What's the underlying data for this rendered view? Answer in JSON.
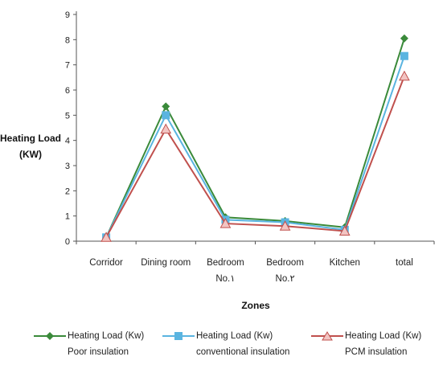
{
  "chart_data": {
    "type": "line",
    "title": "",
    "xlabel": "Zones",
    "ylabel": "Heating Load (KW)",
    "ylabel_lines": [
      "Heating Load",
      "(KW)"
    ],
    "categories": [
      "Corridor",
      "Dining room",
      "Bedroom No.١",
      "Bedroom No.٢",
      "Kitchen",
      "total"
    ],
    "category_lines": [
      [
        "Corridor"
      ],
      [
        "Dining room"
      ],
      [
        "Bedroom",
        "No.١"
      ],
      [
        "Bedroom",
        "No.٢"
      ],
      [
        "Kitchen"
      ],
      [
        "total"
      ]
    ],
    "ylim": [
      0,
      9
    ],
    "yticks": [
      0,
      1,
      2,
      3,
      4,
      5,
      6,
      7,
      8,
      9
    ],
    "grid": false,
    "legend_position": "bottom",
    "series": [
      {
        "name": "Heating Load (Kw) Poor insulation",
        "name_lines": [
          "Heating Load (Kw)",
          "Poor insulation"
        ],
        "color": "#3a8a3a",
        "marker": "diamond",
        "values": [
          0.15,
          5.35,
          0.95,
          0.8,
          0.55,
          8.05
        ]
      },
      {
        "name": "Heating Load (Kw) conventional insulation",
        "name_lines": [
          "Heating Load (Kw)",
          "conventional insulation"
        ],
        "color": "#5ab4e0",
        "marker": "square",
        "values": [
          0.15,
          5.0,
          0.85,
          0.75,
          0.45,
          7.35
        ]
      },
      {
        "name": "Heating Load (Kw) PCM insulation",
        "name_lines": [
          "Heating Load (Kw)",
          "PCM insulation"
        ],
        "color": "#c0504d",
        "marker": "triangle",
        "values": [
          0.15,
          4.45,
          0.7,
          0.6,
          0.4,
          6.55
        ]
      }
    ]
  }
}
